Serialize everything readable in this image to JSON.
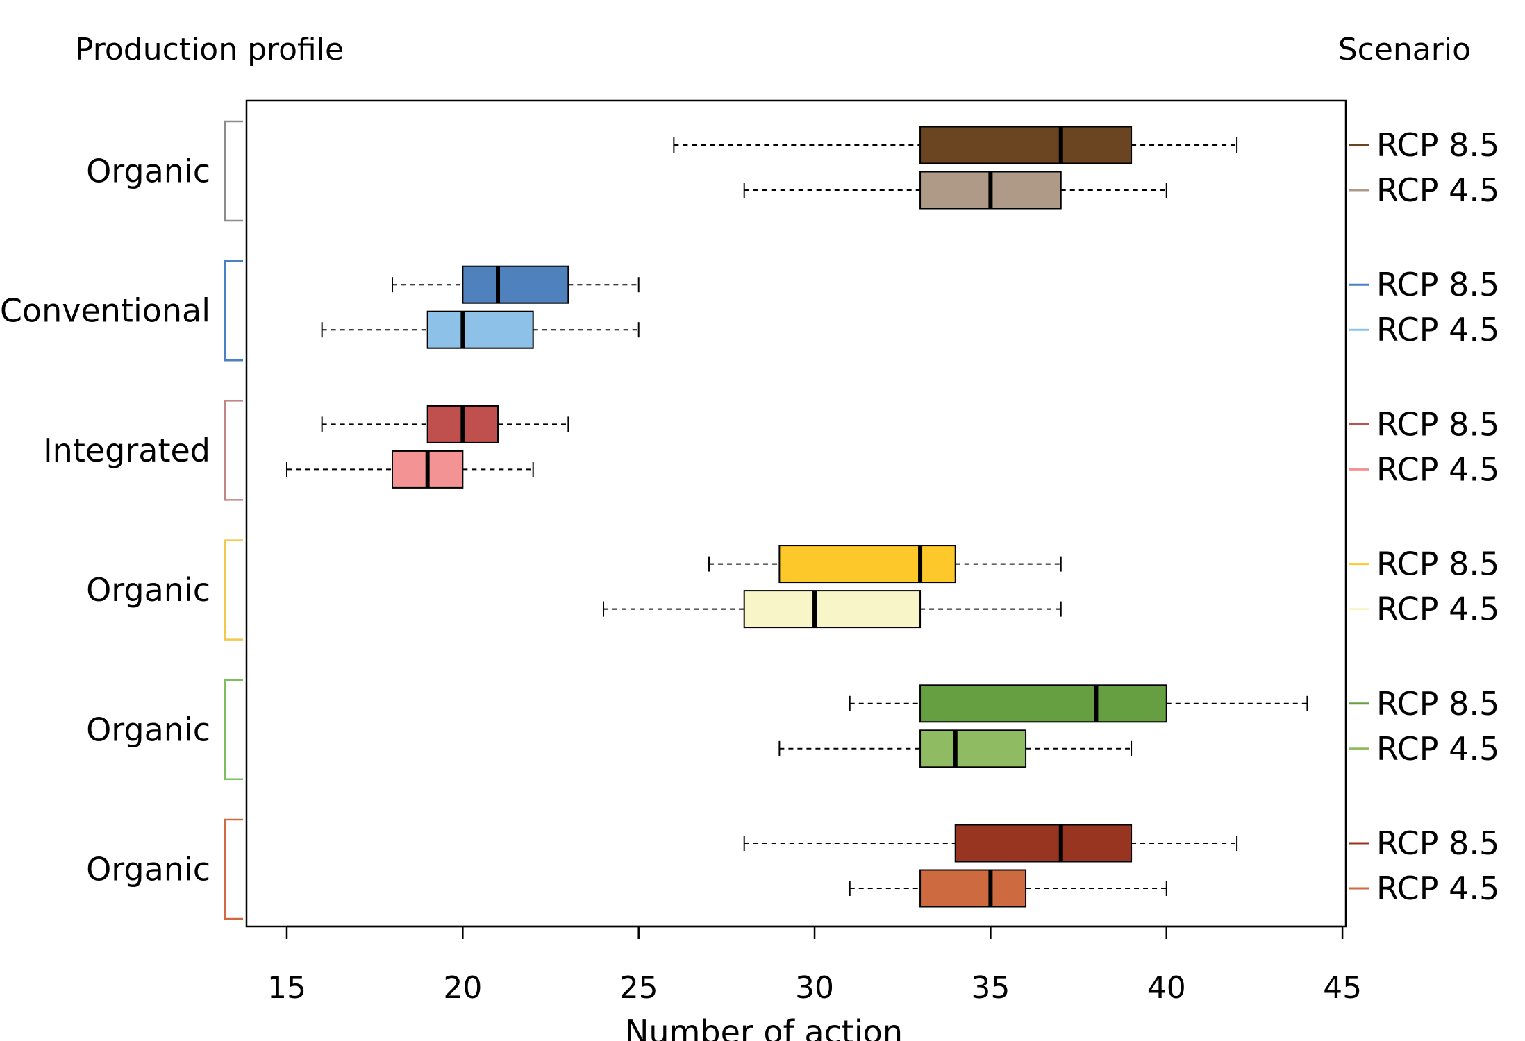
{
  "chart_data": {
    "type": "boxplot",
    "orientation": "horizontal",
    "left_title": "Production profile",
    "right_title": "Scenario",
    "xlabel": "Number of action",
    "xlim": [
      14,
      45
    ],
    "xticks": [
      15,
      20,
      25,
      30,
      35,
      40,
      45
    ],
    "grid": false,
    "groups": [
      {
        "label": "Organic",
        "bracket_color": "#8c8c8c",
        "boxes": [
          {
            "scenario": "RCP 8.5",
            "color": "#6b4522",
            "whisker_low": 26,
            "q1": 33,
            "median": 37,
            "q3": 39,
            "whisker_high": 42
          },
          {
            "scenario": "RCP 4.5",
            "color": "#ae9a86",
            "whisker_low": 28,
            "q1": 33,
            "median": 35,
            "q3": 37,
            "whisker_high": 40
          }
        ]
      },
      {
        "label": "Conventional",
        "bracket_color": "#4a80c4",
        "boxes": [
          {
            "scenario": "RCP 8.5",
            "color": "#4f81bd",
            "whisker_low": 18,
            "q1": 20,
            "median": 21,
            "q3": 23,
            "whisker_high": 25
          },
          {
            "scenario": "RCP 4.5",
            "color": "#8ec1e8",
            "whisker_low": 16,
            "q1": 19,
            "median": 20,
            "q3": 22,
            "whisker_high": 25
          }
        ]
      },
      {
        "label": "Integrated",
        "bracket_color": "#c28686",
        "boxes": [
          {
            "scenario": "RCP 8.5",
            "color": "#c0504d",
            "whisker_low": 16,
            "q1": 19,
            "median": 20,
            "q3": 21,
            "whisker_high": 23
          },
          {
            "scenario": "RCP 4.5",
            "color": "#f49393",
            "whisker_low": 15,
            "q1": 18,
            "median": 19,
            "q3": 20,
            "whisker_high": 22
          }
        ]
      },
      {
        "label": "Organic",
        "bracket_color": "#f4c84a",
        "boxes": [
          {
            "scenario": "RCP 8.5",
            "color": "#fdc82a",
            "whisker_low": 27,
            "q1": 29,
            "median": 33,
            "q3": 34,
            "whisker_high": 37
          },
          {
            "scenario": "RCP 4.5",
            "color": "#f8f6c8",
            "whisker_low": 24,
            "q1": 28,
            "median": 30,
            "q3": 33,
            "whisker_high": 37
          }
        ]
      },
      {
        "label": "Organic",
        "bracket_color": "#7cbf5e",
        "boxes": [
          {
            "scenario": "RCP 8.5",
            "color": "#659f42",
            "whisker_low": 31,
            "q1": 33,
            "median": 38,
            "q3": 40,
            "whisker_high": 44
          },
          {
            "scenario": "RCP 4.5",
            "color": "#8fbb62",
            "whisker_low": 29,
            "q1": 33,
            "median": 34,
            "q3": 36,
            "whisker_high": 39
          }
        ]
      },
      {
        "label": "Organic",
        "bracket_color": "#cf6a40",
        "boxes": [
          {
            "scenario": "RCP 8.5",
            "color": "#983520",
            "whisker_low": 28,
            "q1": 34,
            "median": 37,
            "q3": 39,
            "whisker_high": 42
          },
          {
            "scenario": "RCP 4.5",
            "color": "#cd6a40",
            "whisker_low": 31,
            "q1": 33,
            "median": 35,
            "q3": 36,
            "whisker_high": 40
          }
        ]
      }
    ]
  }
}
